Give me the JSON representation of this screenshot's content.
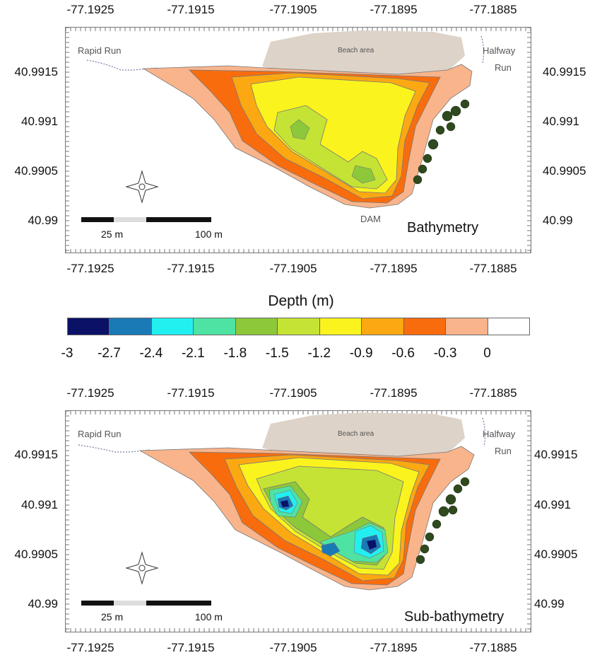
{
  "map_axes": {
    "longitude_ticks": [
      "-77.1925",
      "-77.1915",
      "-77.1905",
      "-77.1895",
      "-77.1885"
    ],
    "latitude_ticks": [
      "40.9915",
      "40.991",
      "40.9905",
      "40.99"
    ]
  },
  "panels": [
    {
      "title": "Bathymetry",
      "labels": {
        "west_inlet": "Rapid Run",
        "east_inlet_line1": "Halfway",
        "east_inlet_line2": "Run",
        "beach": "Beach area",
        "dam": "DAM"
      },
      "scale_bar": {
        "mid_label": "25 m",
        "end_label": "100 m"
      },
      "max_depth_class": "-1.8"
    },
    {
      "title": "Sub-bathymetry",
      "labels": {
        "west_inlet": "Rapid Run",
        "east_inlet_line1": "Halfway",
        "east_inlet_line2": "Run",
        "beach": "Beach area"
      },
      "scale_bar": {
        "mid_label": "25 m",
        "end_label": "100 m"
      },
      "max_depth_class": "-3"
    }
  ],
  "colorbar": {
    "title": "Depth (m)",
    "tick_labels": [
      "-3",
      "-2.7",
      "-2.4",
      "-2.1",
      "-1.8",
      "-1.5",
      "-1.2",
      "-0.9",
      "-0.6",
      "-0.3",
      "0"
    ],
    "colors": [
      "#0a1166",
      "#1a7ab6",
      "#22f0f0",
      "#4ee3a2",
      "#8cc83a",
      "#c5e335",
      "#fbf31d",
      "#fba812",
      "#f96c0d",
      "#f9b48b",
      "#ffffff"
    ]
  },
  "colors": {
    "shore_fill": "#f9b48b",
    "beach_fill": "#ddd3c8",
    "tree_fill": "#2f4a1e"
  }
}
